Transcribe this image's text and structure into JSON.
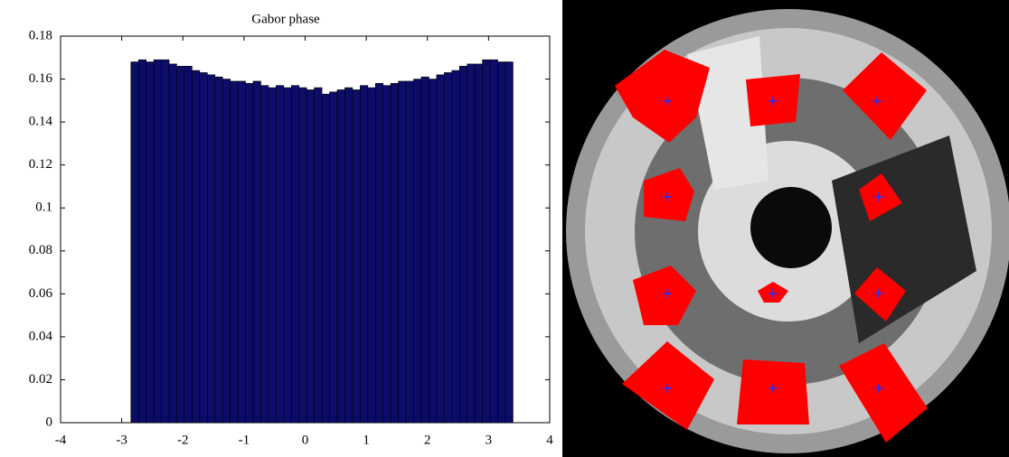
{
  "chart_data": {
    "type": "histogram",
    "title": "Gabor phase",
    "bins": [
      -2.85,
      -2.725,
      -2.6,
      -2.475,
      -2.35,
      -2.225,
      -2.1,
      -1.975,
      -1.85,
      -1.725,
      -1.6,
      -1.475,
      -1.35,
      -1.225,
      -1.1,
      -0.975,
      -0.85,
      -0.725,
      -0.6,
      -0.475,
      -0.35,
      -0.225,
      -0.1,
      0.025,
      0.15,
      0.275,
      0.4,
      0.525,
      0.65,
      0.775,
      0.9,
      1.025,
      1.15,
      1.275,
      1.4,
      1.525,
      1.65,
      1.775,
      1.9,
      2.025,
      2.15,
      2.275,
      2.4,
      2.525,
      2.65,
      2.775,
      2.9,
      3.025,
      3.15,
      3.275,
      3.4
    ],
    "values": [
      0.168,
      0.169,
      0.168,
      0.169,
      0.169,
      0.167,
      0.166,
      0.166,
      0.164,
      0.163,
      0.162,
      0.161,
      0.16,
      0.159,
      0.159,
      0.158,
      0.159,
      0.157,
      0.156,
      0.157,
      0.156,
      0.157,
      0.156,
      0.155,
      0.156,
      0.153,
      0.154,
      0.155,
      0.156,
      0.155,
      0.157,
      0.156,
      0.158,
      0.157,
      0.158,
      0.159,
      0.159,
      0.16,
      0.161,
      0.16,
      0.162,
      0.163,
      0.164,
      0.166,
      0.167,
      0.167,
      0.169,
      0.169,
      0.168,
      0.168
    ],
    "color": "#0c0c6a",
    "xlim": [
      -4,
      4
    ],
    "xticks": [
      -4,
      -3,
      -2,
      -1,
      0,
      1,
      2,
      3,
      4
    ],
    "ylim": [
      0,
      0.18
    ],
    "yticks": [
      0,
      0.02,
      0.04,
      0.06,
      0.08,
      0.1,
      0.12,
      0.14,
      0.16,
      0.18
    ]
  }
}
